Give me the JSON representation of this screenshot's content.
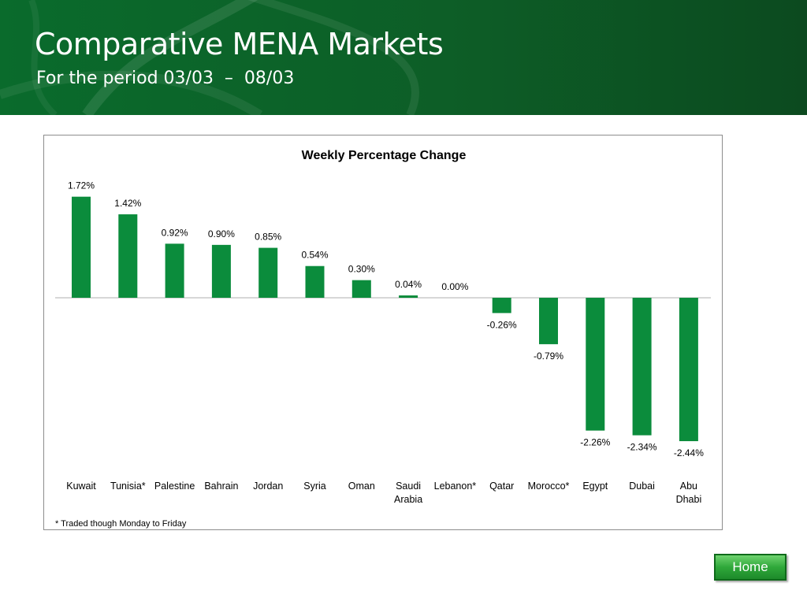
{
  "header": {
    "title": "Comparative MENA Markets",
    "subtitle": "For the period 03/03  –  08/03"
  },
  "colors": {
    "header_green": "#0b5f27",
    "bar_green": "#0b8c3c"
  },
  "chart_data": {
    "type": "bar",
    "title": "Weekly Percentage Change",
    "categories": [
      "Kuwait",
      "Tunisia*",
      "Palestine",
      "Bahrain",
      "Jordan",
      "Syria",
      "Oman",
      "Saudi Arabia",
      "Lebanon*",
      "Qatar",
      "Morocco*",
      "Egypt",
      "Dubai",
      "Abu Dhabi"
    ],
    "category_lines": [
      [
        "Kuwait"
      ],
      [
        "Tunisia*"
      ],
      [
        "Palestine"
      ],
      [
        "Bahrain"
      ],
      [
        "Jordan"
      ],
      [
        "Syria"
      ],
      [
        "Oman"
      ],
      [
        "Saudi",
        "Arabia"
      ],
      [
        "Lebanon*"
      ],
      [
        "Qatar"
      ],
      [
        "Morocco*"
      ],
      [
        "Egypt"
      ],
      [
        "Dubai"
      ],
      [
        "Abu",
        "Dhabi"
      ]
    ],
    "values": [
      1.72,
      1.42,
      0.92,
      0.9,
      0.85,
      0.54,
      0.3,
      0.04,
      0.0,
      -0.26,
      -0.79,
      -2.26,
      -2.34,
      -2.44
    ],
    "labels": [
      "1.72%",
      "1.42%",
      "0.92%",
      "0.90%",
      "0.85%",
      "0.54%",
      "0.30%",
      "0.04%",
      "0.00%",
      "-0.26%",
      "-0.79%",
      "-2.26%",
      "-2.34%",
      "-2.44%"
    ],
    "xlabel": "",
    "ylabel": "",
    "ylim": [
      -2.5,
      2.0
    ],
    "grid": false,
    "legend": "none",
    "footnote": "* Traded though Monday to Friday"
  },
  "nav": {
    "home_label": "Home"
  }
}
